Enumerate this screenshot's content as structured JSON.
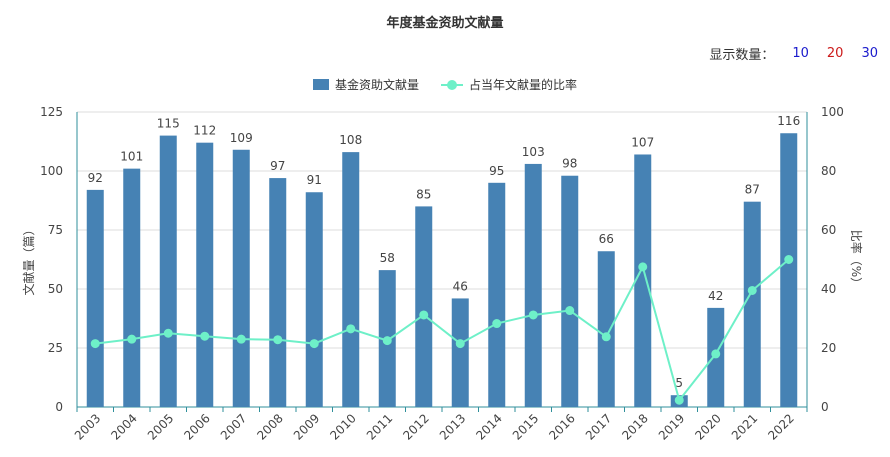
{
  "title": "年度基金资助文献量",
  "display_count": {
    "label": "显示数量：",
    "options": [
      {
        "value": "10",
        "color": "#1a1acc"
      },
      {
        "value": "20",
        "color": "#cc1a1a"
      },
      {
        "value": "30",
        "color": "#1a1acc"
      }
    ]
  },
  "colors": {
    "bar": "#4682b4",
    "line": "#6ef0c8",
    "axis": "#2f8f9b",
    "grid": "#dddddd"
  },
  "chart_data": {
    "type": "bar",
    "categories": [
      "2003",
      "2004",
      "2005",
      "2006",
      "2007",
      "2008",
      "2009",
      "2010",
      "2011",
      "2012",
      "2013",
      "2014",
      "2015",
      "2016",
      "2017",
      "2018",
      "2019",
      "2020",
      "2021",
      "2022"
    ],
    "series": [
      {
        "name": "基金资助文献量",
        "type": "bar",
        "axis": "left",
        "values": [
          92,
          101,
          115,
          112,
          109,
          97,
          91,
          108,
          58,
          85,
          46,
          95,
          103,
          98,
          66,
          107,
          5,
          42,
          87,
          116
        ]
      },
      {
        "name": "占当年文献量的比率",
        "type": "line",
        "axis": "right",
        "values": [
          21.5,
          23,
          25,
          24,
          23,
          22.8,
          21.5,
          26.5,
          22.5,
          31.2,
          21.5,
          28.3,
          31.2,
          32.7,
          23.8,
          47.5,
          2.3,
          18,
          39.5,
          50
        ]
      }
    ],
    "ylabel": "文献量（篇）",
    "y2label": "比率（%）",
    "ylim": [
      0,
      125
    ],
    "y2lim": [
      0,
      100
    ],
    "yticks": [
      0,
      25,
      50,
      75,
      100,
      125
    ],
    "y2ticks": [
      0,
      20,
      40,
      60,
      80,
      100
    ],
    "grid": true,
    "legend_position": "top-center"
  }
}
